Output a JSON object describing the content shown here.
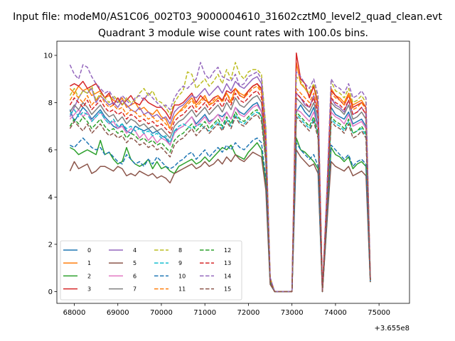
{
  "chart_data": {
    "type": "line",
    "suptitle": "Input file: modeM0/AS1C06_002T03_9000004610_31602cztM0_level2_quad_clean.evt",
    "title": "Quadrant 3 module wise count rates with 100.0s bins.",
    "xlabel": "",
    "ylabel": "",
    "x_offset_label": "+3.655e8",
    "xlim": [
      67600,
      75700
    ],
    "ylim": [
      -0.5,
      10.6
    ],
    "x_ticks": [
      68000,
      69000,
      70000,
      71000,
      72000,
      73000,
      74000,
      75000
    ],
    "x_tick_labels": [
      "68000",
      "69000",
      "70000",
      "71000",
      "72000",
      "73000",
      "74000",
      "75000"
    ],
    "y_ticks": [
      0,
      2,
      4,
      6,
      8,
      10
    ],
    "y_tick_labels": [
      "0",
      "2",
      "4",
      "6",
      "8",
      "10"
    ],
    "grid": false,
    "legend_position": "lower-left",
    "legend_columns": 4,
    "x_start": 67900,
    "x_step": 100,
    "series": [
      {
        "name": "0",
        "color": "#1f77b4",
        "dash": "solid",
        "values": [
          7.7,
          7.2,
          7.5,
          7.8,
          7.6,
          7.3,
          7.5,
          7.7,
          7.4,
          7.2,
          7.0,
          6.9,
          7.1,
          6.8,
          6.7,
          7.0,
          6.9,
          6.8,
          6.9,
          6.7,
          6.8,
          6.6,
          6.5,
          6.2,
          6.8,
          6.9,
          7.0,
          7.2,
          7.4,
          7.1,
          7.3,
          7.5,
          7.2,
          7.3,
          7.5,
          7.4,
          7.6,
          7.3,
          7.8,
          7.6,
          7.5,
          7.7,
          7.9,
          8.0,
          7.6,
          6.0,
          0.4,
          0.0,
          0.0,
          0.0,
          0.0,
          0.0,
          7.6,
          7.9,
          7.6,
          7.4,
          7.8,
          7.0,
          0.0,
          3.6,
          7.8,
          7.5,
          7.4,
          7.3,
          7.6,
          7.1,
          7.2,
          7.3,
          7.0,
          0.5
        ]
      },
      {
        "name": "1",
        "color": "#ff7f0e",
        "dash": "solid",
        "values": [
          8.6,
          8.4,
          8.7,
          8.5,
          8.6,
          8.3,
          8.4,
          8.5,
          8.2,
          8.3,
          8.1,
          8.0,
          8.2,
          7.8,
          7.9,
          8.0,
          7.7,
          7.8,
          7.6,
          7.5,
          7.7,
          7.4,
          7.3,
          6.9,
          7.4,
          7.6,
          7.8,
          8.0,
          8.2,
          7.9,
          8.1,
          8.3,
          7.9,
          8.0,
          8.2,
          8.1,
          8.4,
          8.0,
          8.6,
          8.4,
          8.3,
          8.5,
          8.7,
          8.8,
          8.5,
          6.4,
          0.5,
          0.0,
          0.0,
          0.0,
          0.0,
          0.0,
          9.7,
          8.8,
          8.6,
          8.3,
          8.7,
          8.0,
          0.0,
          4.0,
          8.6,
          8.3,
          8.2,
          8.0,
          8.4,
          7.9,
          8.0,
          8.1,
          7.8,
          0.5
        ]
      },
      {
        "name": "2",
        "color": "#2ca02c",
        "dash": "solid",
        "values": [
          6.1,
          6.0,
          5.8,
          5.9,
          6.0,
          5.9,
          5.8,
          6.4,
          5.8,
          5.9,
          5.6,
          5.4,
          5.5,
          6.1,
          5.6,
          5.4,
          5.3,
          5.4,
          5.6,
          5.2,
          5.5,
          5.2,
          5.3,
          5.1,
          5.0,
          5.3,
          5.4,
          5.5,
          5.6,
          5.4,
          5.5,
          5.7,
          5.5,
          5.7,
          5.9,
          6.1,
          6.0,
          6.2,
          5.8,
          5.7,
          5.6,
          5.9,
          6.1,
          6.3,
          6.0,
          4.6,
          0.4,
          0.0,
          0.0,
          0.0,
          0.0,
          0.0,
          6.5,
          6.0,
          5.9,
          5.7,
          5.5,
          5.2,
          0.0,
          2.9,
          6.1,
          5.8,
          5.7,
          5.5,
          5.7,
          5.2,
          5.4,
          5.5,
          5.3,
          0.4
        ]
      },
      {
        "name": "3",
        "color": "#d62728",
        "dash": "solid",
        "values": [
          8.7,
          8.8,
          8.7,
          8.9,
          8.6,
          8.7,
          8.8,
          8.5,
          8.2,
          8.4,
          7.9,
          8.2,
          7.9,
          8.1,
          8.3,
          8.0,
          7.9,
          8.2,
          8.0,
          7.9,
          7.8,
          7.8,
          7.6,
          7.3,
          7.9,
          7.9,
          8.0,
          8.2,
          8.4,
          8.0,
          8.3,
          8.1,
          8.0,
          8.2,
          8.3,
          8.1,
          8.5,
          8.4,
          8.6,
          8.3,
          8.2,
          8.5,
          8.7,
          8.8,
          8.6,
          6.5,
          0.5,
          0.0,
          0.0,
          0.0,
          0.0,
          0.0,
          10.1,
          9.0,
          8.8,
          8.2,
          8.7,
          7.9,
          0.0,
          4.1,
          8.5,
          8.3,
          8.1,
          7.9,
          8.3,
          7.8,
          7.9,
          8.0,
          7.8,
          0.5
        ]
      },
      {
        "name": "4",
        "color": "#9467bd",
        "dash": "solid",
        "values": [
          7.4,
          7.8,
          8.2,
          8.5,
          8.4,
          8.6,
          8.0,
          8.3,
          8.1,
          7.9,
          8.0,
          7.8,
          8.1,
          7.9,
          7.7,
          7.6,
          7.8,
          7.5,
          7.6,
          7.4,
          7.5,
          7.3,
          7.4,
          7.1,
          7.6,
          7.8,
          7.9,
          8.1,
          8.3,
          8.2,
          8.4,
          8.6,
          8.3,
          8.5,
          8.7,
          8.4,
          8.8,
          8.5,
          8.9,
          8.7,
          8.6,
          8.8,
          9.0,
          9.1,
          8.8,
          6.6,
          0.5,
          0.0,
          0.0,
          0.0,
          0.0,
          0.0,
          8.4,
          8.2,
          7.9,
          7.8,
          8.3,
          7.6,
          0.0,
          3.9,
          8.2,
          7.9,
          7.8,
          7.6,
          8.1,
          7.5,
          7.6,
          7.8,
          7.5,
          0.5
        ]
      },
      {
        "name": "5",
        "color": "#8c564b",
        "dash": "solid",
        "values": [
          5.1,
          5.5,
          5.2,
          5.3,
          5.4,
          5.0,
          5.1,
          5.3,
          5.3,
          5.2,
          5.1,
          5.3,
          5.2,
          4.9,
          5.0,
          4.9,
          5.1,
          5.0,
          4.9,
          5.0,
          4.8,
          4.9,
          4.8,
          4.6,
          5.0,
          5.1,
          5.2,
          5.3,
          5.4,
          5.2,
          5.3,
          5.5,
          5.3,
          5.4,
          5.6,
          5.4,
          5.7,
          5.5,
          5.8,
          5.6,
          5.5,
          5.7,
          5.9,
          5.8,
          5.7,
          4.3,
          0.3,
          0.0,
          0.0,
          0.0,
          0.0,
          0.0,
          6.0,
          5.7,
          5.5,
          5.3,
          5.4,
          5.0,
          0.0,
          2.8,
          5.5,
          5.3,
          5.2,
          5.1,
          5.3,
          4.9,
          5.0,
          5.1,
          4.9,
          0.4
        ]
      },
      {
        "name": "6",
        "color": "#e377c2",
        "dash": "solid",
        "values": [
          7.3,
          7.5,
          7.7,
          7.4,
          7.6,
          7.2,
          7.4,
          7.6,
          7.3,
          7.1,
          7.2,
          6.9,
          7.0,
          6.7,
          6.9,
          6.8,
          6.5,
          6.7,
          6.4,
          6.6,
          6.3,
          6.5,
          6.4,
          6.2,
          6.7,
          6.9,
          7.0,
          7.2,
          7.4,
          7.0,
          7.2,
          7.4,
          7.1,
          7.3,
          7.5,
          7.2,
          7.6,
          7.3,
          7.8,
          7.5,
          7.4,
          7.6,
          7.8,
          7.9,
          7.6,
          5.8,
          0.4,
          0.0,
          0.0,
          0.0,
          0.0,
          0.0,
          7.7,
          7.6,
          7.4,
          7.2,
          7.6,
          6.9,
          0.0,
          3.5,
          7.6,
          7.4,
          7.3,
          7.1,
          7.5,
          7.0,
          7.1,
          7.2,
          6.9,
          0.5
        ]
      },
      {
        "name": "7",
        "color": "#7f7f7f",
        "dash": "solid",
        "values": [
          7.6,
          7.9,
          7.7,
          8.0,
          7.8,
          7.5,
          7.7,
          7.9,
          7.6,
          7.4,
          7.5,
          7.2,
          7.4,
          7.1,
          7.3,
          7.2,
          7.0,
          7.1,
          6.9,
          7.0,
          6.8,
          6.9,
          6.7,
          6.5,
          7.0,
          7.2,
          7.3,
          7.5,
          7.7,
          7.4,
          7.6,
          7.8,
          7.5,
          7.7,
          7.9,
          7.6,
          8.0,
          7.7,
          8.2,
          7.9,
          7.8,
          8.0,
          8.2,
          8.3,
          8.0,
          6.1,
          0.5,
          0.0,
          0.0,
          0.0,
          0.0,
          0.0,
          8.2,
          8.0,
          7.8,
          7.6,
          8.0,
          7.3,
          0.0,
          3.7,
          8.0,
          7.8,
          7.7,
          7.5,
          7.9,
          7.3,
          7.4,
          7.6,
          7.3,
          0.5
        ]
      },
      {
        "name": "8",
        "color": "#bcbd22",
        "dash": "dashed",
        "values": [
          8.3,
          8.6,
          8.2,
          8.5,
          8.4,
          8.7,
          8.1,
          8.4,
          8.2,
          8.0,
          8.3,
          8.1,
          7.9,
          8.2,
          8.0,
          8.1,
          8.4,
          8.6,
          8.3,
          8.5,
          8.1,
          8.0,
          7.8,
          7.5,
          8.0,
          8.3,
          8.5,
          9.3,
          9.2,
          8.6,
          8.8,
          9.0,
          8.7,
          8.9,
          9.2,
          8.8,
          9.4,
          9.0,
          9.7,
          9.2,
          9.0,
          9.3,
          9.4,
          9.4,
          9.2,
          7.0,
          0.6,
          0.0,
          0.0,
          0.0,
          0.0,
          0.0,
          9.1,
          8.9,
          8.6,
          8.4,
          8.8,
          8.1,
          0.0,
          4.1,
          8.9,
          8.5,
          8.4,
          8.2,
          8.6,
          8.0,
          8.1,
          8.3,
          8.0,
          0.6
        ]
      },
      {
        "name": "9",
        "color": "#17becf",
        "dash": "dashed",
        "values": [
          7.5,
          7.7,
          7.4,
          7.6,
          7.5,
          7.2,
          7.4,
          7.6,
          7.3,
          7.1,
          7.3,
          7.0,
          7.1,
          6.9,
          7.0,
          6.8,
          6.9,
          6.7,
          6.8,
          6.6,
          6.7,
          6.5,
          6.6,
          6.3,
          6.8,
          7.0,
          7.1,
          7.0,
          6.9,
          7.0,
          7.1,
          6.9,
          6.8,
          7.0,
          7.2,
          6.9,
          7.3,
          7.0,
          7.5,
          7.2,
          7.1,
          7.3,
          7.5,
          7.6,
          7.4,
          5.6,
          0.4,
          0.0,
          0.0,
          0.0,
          0.0,
          0.0,
          7.5,
          7.3,
          7.1,
          6.9,
          7.3,
          6.6,
          0.0,
          3.4,
          7.3,
          7.1,
          7.0,
          6.8,
          7.2,
          6.7,
          6.8,
          6.9,
          6.6,
          0.5
        ]
      },
      {
        "name": "10",
        "color": "#1f77b4",
        "dash": "dashed",
        "values": [
          6.2,
          6.1,
          6.3,
          6.5,
          6.3,
          6.1,
          6.0,
          6.1,
          5.8,
          5.9,
          5.7,
          5.5,
          5.4,
          5.8,
          5.6,
          5.4,
          5.5,
          5.3,
          5.6,
          5.4,
          5.7,
          5.5,
          5.3,
          5.2,
          5.3,
          5.5,
          5.6,
          5.8,
          5.9,
          5.6,
          5.8,
          6.0,
          5.7,
          5.9,
          6.1,
          5.9,
          6.2,
          6.0,
          6.3,
          6.1,
          6.0,
          6.2,
          6.4,
          6.5,
          6.3,
          4.8,
          0.4,
          0.0,
          0.0,
          0.0,
          0.0,
          0.0,
          6.3,
          6.0,
          5.8,
          5.6,
          5.8,
          5.3,
          0.0,
          3.0,
          6.2,
          6.0,
          5.8,
          5.6,
          5.8,
          5.3,
          5.5,
          5.6,
          5.4,
          0.4
        ]
      },
      {
        "name": "11",
        "color": "#ff7f0e",
        "dash": "dashed",
        "values": [
          8.1,
          8.4,
          8.2,
          8.0,
          8.3,
          7.9,
          8.1,
          8.3,
          8.0,
          7.8,
          7.9,
          7.7,
          7.8,
          7.5,
          7.7,
          7.6,
          7.4,
          7.5,
          7.3,
          7.4,
          7.2,
          7.3,
          7.1,
          6.9,
          7.4,
          7.6,
          7.7,
          7.9,
          8.1,
          7.8,
          8.0,
          8.2,
          7.9,
          8.1,
          8.3,
          8.0,
          8.4,
          8.1,
          8.6,
          8.3,
          8.2,
          8.4,
          8.6,
          8.7,
          8.4,
          6.4,
          0.5,
          0.0,
          0.0,
          0.0,
          0.0,
          0.0,
          8.6,
          8.4,
          8.2,
          8.0,
          8.4,
          7.7,
          0.0,
          3.9,
          8.4,
          8.2,
          8.1,
          7.9,
          8.3,
          7.7,
          7.8,
          8.0,
          7.7,
          0.5
        ]
      },
      {
        "name": "12",
        "color": "#2ca02c",
        "dash": "dashed",
        "values": [
          7.0,
          7.3,
          7.1,
          7.4,
          7.2,
          6.9,
          7.1,
          7.3,
          7.0,
          6.8,
          6.9,
          6.7,
          6.8,
          6.5,
          6.7,
          6.6,
          6.4,
          6.5,
          6.3,
          6.4,
          6.2,
          6.3,
          6.1,
          5.9,
          6.4,
          6.6,
          6.7,
          6.9,
          7.1,
          6.8,
          7.0,
          7.2,
          6.9,
          7.1,
          7.3,
          7.0,
          7.4,
          7.1,
          7.6,
          7.3,
          7.2,
          7.4,
          7.6,
          7.7,
          7.4,
          5.6,
          0.4,
          0.0,
          0.0,
          0.0,
          0.0,
          0.0,
          7.6,
          7.4,
          7.2,
          7.0,
          7.4,
          6.7,
          0.0,
          3.4,
          7.4,
          7.2,
          7.1,
          6.9,
          7.3,
          6.7,
          6.8,
          7.0,
          6.7,
          0.5
        ]
      },
      {
        "name": "13",
        "color": "#d62728",
        "dash": "dashed",
        "values": [
          7.9,
          8.2,
          8.0,
          7.8,
          8.1,
          7.7,
          7.9,
          8.1,
          7.8,
          7.6,
          7.7,
          7.5,
          7.6,
          7.3,
          7.5,
          7.4,
          7.2,
          7.3,
          7.1,
          7.2,
          7.0,
          7.1,
          6.9,
          6.7,
          7.2,
          7.4,
          7.5,
          7.7,
          7.9,
          7.6,
          7.8,
          8.0,
          7.7,
          7.9,
          8.1,
          7.8,
          8.2,
          7.9,
          8.4,
          8.1,
          8.0,
          8.2,
          8.4,
          8.5,
          8.2,
          6.2,
          0.5,
          0.0,
          0.0,
          0.0,
          0.0,
          0.0,
          8.4,
          8.2,
          8.0,
          7.8,
          8.2,
          7.5,
          0.0,
          3.8,
          8.2,
          8.0,
          7.9,
          7.7,
          8.1,
          7.5,
          7.6,
          7.8,
          7.5,
          0.5
        ]
      },
      {
        "name": "14",
        "color": "#9467bd",
        "dash": "dashed",
        "values": [
          9.6,
          9.2,
          9.0,
          9.6,
          9.5,
          9.1,
          8.8,
          8.6,
          8.4,
          8.5,
          8.2,
          8.0,
          8.3,
          8.1,
          7.9,
          8.2,
          8.3,
          8.1,
          8.4,
          8.2,
          8.0,
          7.8,
          7.9,
          7.7,
          8.2,
          8.5,
          8.7,
          8.6,
          8.8,
          9.0,
          9.7,
          9.2,
          9.0,
          9.3,
          9.5,
          9.1,
          9.0,
          8.9,
          9.2,
          8.7,
          8.8,
          9.1,
          9.2,
          9.3,
          9.0,
          6.9,
          0.6,
          0.0,
          0.0,
          0.0,
          0.0,
          0.0,
          9.3,
          9.1,
          8.8,
          8.6,
          9.0,
          8.3,
          0.0,
          4.2,
          9.0,
          8.7,
          8.6,
          8.4,
          8.8,
          8.2,
          8.3,
          8.5,
          8.2,
          0.6
        ]
      },
      {
        "name": "15",
        "color": "#8c564b",
        "dash": "dashed",
        "values": [
          6.9,
          7.2,
          7.0,
          6.8,
          7.1,
          6.7,
          6.9,
          7.1,
          6.8,
          6.6,
          6.7,
          6.5,
          6.6,
          6.3,
          6.5,
          6.4,
          6.2,
          6.3,
          6.1,
          6.2,
          6.0,
          6.1,
          5.9,
          5.7,
          6.2,
          6.4,
          6.5,
          6.7,
          6.9,
          6.6,
          6.8,
          7.0,
          6.7,
          6.9,
          7.1,
          6.8,
          7.2,
          6.9,
          7.4,
          7.1,
          7.0,
          7.2,
          7.4,
          7.5,
          7.2,
          5.5,
          0.4,
          0.0,
          0.0,
          0.0,
          0.0,
          0.0,
          7.4,
          7.2,
          7.0,
          6.8,
          7.2,
          6.5,
          0.0,
          3.3,
          7.2,
          7.0,
          6.9,
          6.7,
          7.1,
          6.5,
          6.6,
          6.8,
          6.5,
          0.5
        ]
      }
    ]
  }
}
